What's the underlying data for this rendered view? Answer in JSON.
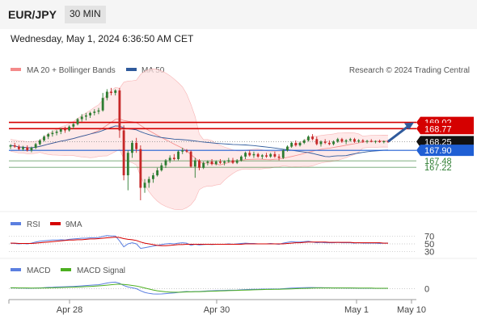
{
  "header": {
    "pair": "EUR/JPY",
    "timeframe": "30 MIN"
  },
  "date_line": "Wednesday, May 1, 2024 6:36:50 AM CET",
  "legend": {
    "bollinger": "MA 20 + Bollinger Bands",
    "ma50": "MA 50",
    "credit": "Research © 2024 Trading Central",
    "rsi": "RSI",
    "nine_ma": "9MA",
    "macd": "MACD",
    "macd_signal": "MACD Signal"
  },
  "colors": {
    "up": "#2e7d32",
    "down": "#c62828",
    "bollinger": "#f48a8a",
    "ma50": "#2f5a9c",
    "resistance": "#d50000",
    "pivot": "#1f5fd4",
    "support": "#2e7d32",
    "arrow": "#2f5a9c"
  },
  "chart_data": [
    {
      "type": "candlestick",
      "x_labels": [
        "Apr 28",
        "Apr 30",
        "May 1",
        "May 10"
      ],
      "ylim": [
        165.9,
        170.3
      ],
      "levels": [
        {
          "label": "169.02",
          "value": 169.02,
          "kind": "resistance"
        },
        {
          "label": "168.77",
          "value": 168.77,
          "kind": "resistance"
        },
        {
          "label": "168.25",
          "value": 168.25,
          "kind": "current"
        },
        {
          "label": "167.90",
          "value": 167.9,
          "kind": "pivot"
        },
        {
          "label": "167.48",
          "value": 167.48,
          "kind": "support"
        },
        {
          "label": "167.22",
          "value": 167.22,
          "kind": "support"
        }
      ],
      "forecast_target": 169.02,
      "ohlc": [
        [
          168.05,
          168.15,
          167.95,
          168.1
        ],
        [
          168.1,
          168.2,
          168.0,
          168.05
        ],
        [
          168.05,
          168.12,
          167.9,
          167.95
        ],
        [
          167.95,
          168.08,
          167.88,
          168.02
        ],
        [
          168.02,
          168.1,
          167.85,
          167.9
        ],
        [
          167.9,
          168.05,
          167.82,
          168.0
        ],
        [
          168.0,
          168.2,
          167.95,
          168.15
        ],
        [
          168.15,
          168.35,
          168.1,
          168.3
        ],
        [
          168.3,
          168.5,
          168.25,
          168.45
        ],
        [
          168.45,
          168.6,
          168.35,
          168.55
        ],
        [
          168.55,
          168.7,
          168.45,
          168.6
        ],
        [
          168.6,
          168.72,
          168.5,
          168.65
        ],
        [
          168.65,
          168.8,
          168.55,
          168.75
        ],
        [
          168.75,
          168.85,
          168.6,
          168.7
        ],
        [
          168.7,
          168.9,
          168.65,
          168.85
        ],
        [
          168.85,
          169.0,
          168.75,
          168.95
        ],
        [
          168.95,
          169.2,
          168.9,
          169.15
        ],
        [
          169.15,
          169.35,
          169.05,
          169.25
        ],
        [
          169.25,
          169.4,
          169.1,
          169.3
        ],
        [
          169.3,
          169.45,
          169.2,
          169.4
        ],
        [
          169.4,
          169.55,
          169.3,
          169.45
        ],
        [
          169.45,
          169.6,
          169.35,
          169.5
        ],
        [
          169.5,
          170.2,
          169.45,
          170.0
        ],
        [
          170.0,
          170.35,
          169.9,
          170.25
        ],
        [
          170.25,
          170.4,
          170.1,
          170.2
        ],
        [
          170.2,
          170.35,
          170.1,
          170.3
        ],
        [
          170.3,
          170.4,
          168.4,
          168.7
        ],
        [
          168.7,
          168.9,
          166.7,
          166.9
        ],
        [
          166.9,
          167.9,
          166.3,
          167.8
        ],
        [
          167.8,
          168.3,
          167.6,
          168.2
        ],
        [
          168.2,
          168.4,
          167.8,
          167.95
        ],
        [
          167.95,
          168.1,
          165.9,
          166.4
        ],
        [
          166.4,
          166.75,
          166.2,
          166.6
        ],
        [
          166.6,
          166.85,
          166.4,
          166.75
        ],
        [
          166.75,
          167.0,
          166.6,
          166.9
        ],
        [
          166.9,
          167.2,
          166.85,
          167.1
        ],
        [
          167.1,
          167.4,
          167.05,
          167.3
        ],
        [
          167.3,
          167.55,
          167.2,
          167.5
        ],
        [
          167.5,
          167.7,
          167.4,
          167.6
        ],
        [
          167.6,
          167.75,
          167.5,
          167.55
        ],
        [
          167.55,
          167.9,
          167.5,
          167.85
        ],
        [
          167.85,
          168.0,
          167.75,
          167.9
        ],
        [
          167.9,
          167.95,
          167.8,
          167.85
        ],
        [
          167.85,
          167.9,
          167.2,
          167.25
        ],
        [
          167.25,
          167.6,
          166.8,
          167.5
        ],
        [
          167.5,
          167.55,
          167.1,
          167.2
        ],
        [
          167.2,
          167.45,
          167.15,
          167.4
        ],
        [
          167.4,
          167.5,
          167.3,
          167.45
        ],
        [
          167.45,
          167.55,
          167.3,
          167.35
        ],
        [
          167.35,
          167.5,
          167.3,
          167.45
        ],
        [
          167.45,
          167.55,
          167.35,
          167.4
        ],
        [
          167.4,
          167.5,
          167.3,
          167.45
        ],
        [
          167.45,
          167.6,
          167.4,
          167.5
        ],
        [
          167.5,
          167.6,
          167.35,
          167.4
        ],
        [
          167.4,
          167.55,
          167.35,
          167.5
        ],
        [
          167.5,
          167.7,
          167.45,
          167.65
        ],
        [
          167.65,
          167.85,
          167.55,
          167.8
        ],
        [
          167.8,
          167.9,
          167.65,
          167.7
        ],
        [
          167.7,
          167.85,
          167.6,
          167.75
        ],
        [
          167.75,
          167.8,
          167.6,
          167.65
        ],
        [
          167.65,
          167.75,
          167.55,
          167.7
        ],
        [
          167.7,
          167.8,
          167.6,
          167.65
        ],
        [
          167.65,
          167.8,
          167.6,
          167.75
        ],
        [
          167.75,
          167.85,
          167.6,
          167.65
        ],
        [
          167.65,
          167.75,
          167.5,
          167.6
        ],
        [
          167.6,
          167.95,
          167.55,
          167.9
        ],
        [
          167.9,
          168.1,
          167.85,
          168.05
        ],
        [
          168.05,
          168.25,
          168.0,
          168.2
        ],
        [
          168.2,
          168.3,
          168.05,
          168.1
        ],
        [
          168.1,
          168.25,
          168.05,
          168.2
        ],
        [
          168.2,
          168.35,
          168.15,
          168.3
        ],
        [
          168.3,
          168.5,
          168.25,
          168.45
        ],
        [
          168.45,
          168.55,
          168.3,
          168.35
        ],
        [
          168.35,
          168.45,
          168.1,
          168.15
        ],
        [
          168.15,
          168.3,
          168.05,
          168.25
        ],
        [
          168.25,
          168.35,
          168.15,
          168.2
        ],
        [
          168.2,
          168.3,
          168.1,
          168.15
        ],
        [
          168.15,
          168.3,
          168.1,
          168.25
        ],
        [
          168.25,
          168.4,
          168.2,
          168.35
        ],
        [
          168.35,
          168.4,
          168.2,
          168.25
        ],
        [
          168.25,
          168.35,
          168.15,
          168.3
        ],
        [
          168.3,
          168.4,
          168.25,
          168.35
        ],
        [
          168.35,
          168.4,
          168.2,
          168.25
        ],
        [
          168.25,
          168.35,
          168.2,
          168.3
        ],
        [
          168.3,
          168.35,
          168.2,
          168.25
        ],
        [
          168.25,
          168.32,
          168.18,
          168.28
        ],
        [
          168.28,
          168.35,
          168.22,
          168.24
        ],
        [
          168.24,
          168.3,
          168.18,
          168.27
        ],
        [
          168.27,
          168.33,
          168.2,
          168.23
        ],
        [
          168.23,
          168.3,
          168.18,
          168.26
        ],
        [
          168.26,
          168.32,
          168.2,
          168.25
        ]
      ]
    },
    {
      "type": "line",
      "name": "RSI",
      "ylim": [
        20,
        80
      ],
      "ticks": [
        70,
        50,
        30
      ],
      "values": [
        52,
        51,
        50,
        51,
        50,
        52,
        55,
        57,
        58,
        59,
        60,
        60,
        61,
        60,
        62,
        63,
        64,
        65,
        65,
        66,
        66,
        67,
        70,
        72,
        71,
        71,
        58,
        42,
        50,
        53,
        50,
        38,
        40,
        42,
        44,
        46,
        48,
        50,
        51,
        50,
        52,
        53,
        52,
        46,
        49,
        47,
        48,
        49,
        48,
        49,
        49,
        49,
        50,
        49,
        50,
        51,
        52,
        51,
        51,
        50,
        50,
        50,
        51,
        50,
        49,
        52,
        54,
        56,
        55,
        55,
        56,
        57,
        55,
        53,
        54,
        53,
        53,
        53,
        54,
        53,
        53,
        53,
        52,
        53,
        52,
        52,
        52,
        52,
        51,
        52,
        52
      ],
      "nine_ma": [
        52,
        52,
        51,
        51,
        51,
        51,
        52,
        53,
        54,
        55,
        56,
        57,
        58,
        59,
        60,
        60,
        61,
        61,
        62,
        63,
        63,
        64,
        65,
        66,
        67,
        68,
        67,
        64,
        62,
        61,
        59,
        55,
        52,
        50,
        48,
        46,
        45,
        45,
        46,
        47,
        48,
        48,
        49,
        49,
        49,
        49,
        49,
        49,
        49,
        49,
        49,
        49,
        49,
        49,
        49,
        49,
        50,
        50,
        50,
        50,
        50,
        50,
        50,
        50,
        50,
        50,
        51,
        52,
        53,
        53,
        54,
        55,
        55,
        55,
        55,
        55,
        54,
        54,
        54,
        54,
        54,
        54,
        53,
        53,
        53,
        53,
        53,
        53,
        53,
        52,
        52
      ]
    },
    {
      "type": "line",
      "name": "MACD",
      "ylim": [
        -1.0,
        1.0
      ],
      "ticks": [
        0
      ],
      "values": [
        0.05,
        0.05,
        0.04,
        0.04,
        0.03,
        0.03,
        0.04,
        0.05,
        0.07,
        0.09,
        0.1,
        0.12,
        0.13,
        0.14,
        0.15,
        0.16,
        0.18,
        0.2,
        0.22,
        0.24,
        0.26,
        0.28,
        0.34,
        0.4,
        0.44,
        0.46,
        0.38,
        0.22,
        0.12,
        0.06,
        0.0,
        -0.15,
        -0.26,
        -0.33,
        -0.37,
        -0.38,
        -0.37,
        -0.35,
        -0.32,
        -0.3,
        -0.26,
        -0.22,
        -0.2,
        -0.22,
        -0.2,
        -0.2,
        -0.18,
        -0.16,
        -0.15,
        -0.14,
        -0.13,
        -0.12,
        -0.11,
        -0.11,
        -0.1,
        -0.08,
        -0.06,
        -0.05,
        -0.04,
        -0.04,
        -0.03,
        -0.03,
        -0.02,
        -0.02,
        -0.02,
        0.0,
        0.02,
        0.04,
        0.05,
        0.06,
        0.07,
        0.08,
        0.08,
        0.07,
        0.07,
        0.06,
        0.06,
        0.05,
        0.05,
        0.05,
        0.04,
        0.04,
        0.04,
        0.03,
        0.03,
        0.03,
        0.03,
        0.02,
        0.02,
        0.02,
        0.02
      ],
      "signal": [
        0.06,
        0.06,
        0.05,
        0.05,
        0.05,
        0.04,
        0.04,
        0.04,
        0.05,
        0.05,
        0.06,
        0.07,
        0.08,
        0.09,
        0.1,
        0.11,
        0.12,
        0.13,
        0.15,
        0.16,
        0.18,
        0.2,
        0.22,
        0.25,
        0.28,
        0.31,
        0.32,
        0.3,
        0.27,
        0.23,
        0.19,
        0.12,
        0.05,
        -0.02,
        -0.09,
        -0.15,
        -0.19,
        -0.22,
        -0.24,
        -0.25,
        -0.25,
        -0.24,
        -0.23,
        -0.22,
        -0.21,
        -0.21,
        -0.2,
        -0.19,
        -0.18,
        -0.17,
        -0.16,
        -0.15,
        -0.14,
        -0.13,
        -0.12,
        -0.11,
        -0.1,
        -0.09,
        -0.08,
        -0.07,
        -0.06,
        -0.05,
        -0.05,
        -0.04,
        -0.04,
        -0.03,
        -0.02,
        -0.01,
        0.0,
        0.01,
        0.02,
        0.03,
        0.04,
        0.05,
        0.05,
        0.05,
        0.05,
        0.05,
        0.05,
        0.05,
        0.05,
        0.05,
        0.04,
        0.04,
        0.04,
        0.04,
        0.04,
        0.03,
        0.03,
        0.03,
        0.03
      ]
    }
  ]
}
